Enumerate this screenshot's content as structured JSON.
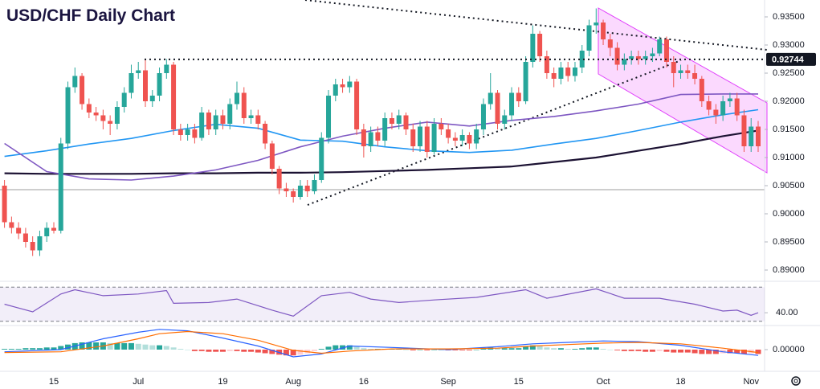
{
  "chart_data": {
    "type": "candlestick",
    "title": "USD/CHF Daily Chart",
    "categories": [
      null,
      null,
      null,
      null,
      null,
      null,
      null,
      "15",
      null,
      null,
      null,
      null,
      null,
      null,
      null,
      null,
      null,
      null,
      null,
      "Jul",
      null,
      null,
      null,
      null,
      null,
      null,
      null,
      null,
      null,
      null,
      null,
      "19",
      null,
      null,
      null,
      null,
      null,
      null,
      null,
      null,
      null,
      "Aug",
      null,
      null,
      null,
      null,
      null,
      null,
      null,
      null,
      null,
      "16",
      null,
      null,
      null,
      null,
      null,
      null,
      null,
      null,
      null,
      null,
      null,
      "Sep",
      null,
      null,
      null,
      null,
      null,
      null,
      null,
      null,
      null,
      "15",
      null,
      null,
      null,
      null,
      null,
      null,
      null,
      null,
      null,
      null,
      null,
      "Oct",
      null,
      null,
      null,
      null,
      null,
      null,
      null,
      null,
      null,
      null,
      "18",
      null,
      null,
      null,
      null,
      null,
      null,
      null,
      null,
      null,
      "Nov",
      null
    ],
    "open": [
      0.905,
      0.8985,
      0.8975,
      0.8965,
      0.895,
      0.8935,
      0.896,
      0.8975,
      0.897,
      0.9125,
      0.9225,
      0.9245,
      0.9195,
      0.918,
      0.9175,
      0.9165,
      0.916,
      0.919,
      0.9215,
      0.925,
      0.9255,
      0.92,
      0.921,
      0.925,
      0.9265,
      0.915,
      0.914,
      0.915,
      0.9135,
      0.918,
      0.915,
      0.9175,
      0.916,
      0.9195,
      0.9215,
      0.917,
      0.9175,
      0.916,
      0.9125,
      0.908,
      0.9045,
      0.904,
      0.903,
      0.905,
      0.904,
      0.906,
      0.9135,
      0.921,
      0.923,
      0.9225,
      0.9235,
      0.915,
      0.912,
      0.9145,
      0.913,
      0.917,
      0.916,
      0.9175,
      0.915,
      0.912,
      0.9155,
      0.911,
      0.916,
      0.915,
      0.9135,
      0.913,
      0.914,
      0.9125,
      0.915,
      0.9195,
      0.9215,
      0.916,
      0.9175,
      0.9215,
      0.92,
      0.927,
      0.932,
      0.928,
      0.925,
      0.924,
      0.926,
      0.9245,
      0.926,
      0.929,
      0.9335,
      0.934,
      0.931,
      0.9295,
      0.9265,
      0.9275,
      0.928,
      0.9275,
      0.928,
      0.9285,
      0.931,
      0.927,
      0.925,
      0.9255,
      0.925,
      0.924,
      0.92,
      0.9185,
      0.9175,
      0.92,
      0.9205,
      0.9175,
      0.912,
      0.9155
    ],
    "high": [
      0.906,
      0.8995,
      0.8985,
      0.8975,
      0.896,
      0.897,
      0.8985,
      0.8985,
      0.9135,
      0.9235,
      0.926,
      0.925,
      0.9205,
      0.919,
      0.9185,
      0.9175,
      0.92,
      0.9225,
      0.9265,
      0.927,
      0.9275,
      0.922,
      0.926,
      0.9275,
      0.927,
      0.916,
      0.916,
      0.916,
      0.919,
      0.9185,
      0.9185,
      0.9185,
      0.9205,
      0.9235,
      0.9225,
      0.9185,
      0.9185,
      0.9165,
      0.913,
      0.9085,
      0.9055,
      0.9045,
      0.906,
      0.906,
      0.907,
      0.9145,
      0.922,
      0.924,
      0.924,
      0.9245,
      0.924,
      0.916,
      0.9155,
      0.9155,
      0.918,
      0.918,
      0.9185,
      0.918,
      0.916,
      0.9165,
      0.9165,
      0.917,
      0.917,
      0.916,
      0.9145,
      0.915,
      0.9145,
      0.916,
      0.9205,
      0.925,
      0.922,
      0.9185,
      0.9225,
      0.9225,
      0.928,
      0.9335,
      0.9325,
      0.929,
      0.926,
      0.927,
      0.927,
      0.927,
      0.93,
      0.9345,
      0.9365,
      0.9345,
      0.932,
      0.9305,
      0.9285,
      0.929,
      0.929,
      0.929,
      0.9295,
      0.9315,
      0.9315,
      0.928,
      0.9265,
      0.9265,
      0.9265,
      0.9245,
      0.921,
      0.9195,
      0.921,
      0.9215,
      0.9215,
      0.9185,
      0.917,
      0.9165
    ],
    "low": [
      0.8975,
      0.8965,
      0.8955,
      0.894,
      0.8925,
      0.8925,
      0.895,
      0.8965,
      0.8965,
      0.9115,
      0.9215,
      0.9185,
      0.917,
      0.9165,
      0.915,
      0.914,
      0.915,
      0.918,
      0.9205,
      0.924,
      0.919,
      0.919,
      0.92,
      0.924,
      0.914,
      0.913,
      0.913,
      0.9125,
      0.913,
      0.914,
      0.914,
      0.915,
      0.915,
      0.9185,
      0.916,
      0.916,
      0.915,
      0.9115,
      0.907,
      0.9035,
      0.903,
      0.902,
      0.9025,
      0.903,
      0.9035,
      0.9055,
      0.9125,
      0.92,
      0.9215,
      0.9215,
      0.914,
      0.91,
      0.911,
      0.912,
      0.912,
      0.915,
      0.915,
      0.914,
      0.911,
      0.911,
      0.91,
      0.9105,
      0.914,
      0.9125,
      0.912,
      0.912,
      0.9115,
      0.9115,
      0.914,
      0.9185,
      0.915,
      0.915,
      0.9165,
      0.919,
      0.9195,
      0.926,
      0.927,
      0.924,
      0.9225,
      0.923,
      0.9235,
      0.9235,
      0.925,
      0.928,
      0.932,
      0.93,
      0.928,
      0.9255,
      0.9255,
      0.9265,
      0.9265,
      0.9265,
      0.927,
      0.928,
      0.926,
      0.9225,
      0.924,
      0.924,
      0.923,
      0.919,
      0.9175,
      0.916,
      0.9165,
      0.919,
      0.9165,
      0.911,
      0.911,
      0.911
    ],
    "close": [
      0.8985,
      0.8975,
      0.8965,
      0.895,
      0.8935,
      0.896,
      0.8975,
      0.897,
      0.9125,
      0.9225,
      0.9245,
      0.9195,
      0.918,
      0.9175,
      0.9165,
      0.916,
      0.919,
      0.9215,
      0.925,
      0.9255,
      0.92,
      0.921,
      0.925,
      0.9265,
      0.915,
      0.914,
      0.915,
      0.9135,
      0.918,
      0.915,
      0.9175,
      0.916,
      0.9195,
      0.9215,
      0.917,
      0.9175,
      0.916,
      0.9125,
      0.908,
      0.9045,
      0.904,
      0.903,
      0.905,
      0.904,
      0.906,
      0.9135,
      0.921,
      0.923,
      0.9225,
      0.9235,
      0.915,
      0.912,
      0.9145,
      0.913,
      0.917,
      0.916,
      0.9175,
      0.915,
      0.912,
      0.9155,
      0.911,
      0.916,
      0.915,
      0.9135,
      0.913,
      0.914,
      0.9125,
      0.915,
      0.9195,
      0.9215,
      0.916,
      0.9175,
      0.9215,
      0.92,
      0.927,
      0.932,
      0.928,
      0.925,
      0.924,
      0.926,
      0.9245,
      0.926,
      0.929,
      0.9335,
      0.934,
      0.931,
      0.9295,
      0.9265,
      0.9275,
      0.928,
      0.9275,
      0.928,
      0.9285,
      0.931,
      0.927,
      0.925,
      0.9255,
      0.925,
      0.924,
      0.92,
      0.9185,
      0.9175,
      0.92,
      0.9205,
      0.9175,
      0.912,
      0.9155,
      0.912
    ],
    "up_color": "#26a69a",
    "down_color": "#ef5350",
    "ylim": [
      0.888,
      0.938
    ],
    "yticks": [
      {
        "value": 0.89,
        "label": "0.89000"
      },
      {
        "value": 0.895,
        "label": "0.89500"
      },
      {
        "value": 0.9,
        "label": "0.90000"
      },
      {
        "value": 0.905,
        "label": "0.90500"
      },
      {
        "value": 0.91,
        "label": "0.91000"
      },
      {
        "value": 0.915,
        "label": "0.91500"
      },
      {
        "value": 0.92,
        "label": "0.92000"
      },
      {
        "value": 0.925,
        "label": "0.92500"
      },
      {
        "value": 0.93,
        "label": "0.93000"
      },
      {
        "value": 0.935,
        "label": "0.93500"
      }
    ],
    "moving_averages": [
      {
        "color": "#1c1233",
        "x": [
          0,
          6,
          12,
          18,
          24,
          30,
          36,
          42,
          48,
          54,
          60,
          66,
          72,
          78,
          84,
          90,
          96,
          102,
          107
        ],
        "values": [
          0.9072,
          0.9071,
          0.9071,
          0.9071,
          0.9072,
          0.9072,
          0.9073,
          0.9073,
          0.9074,
          0.9076,
          0.9078,
          0.9081,
          0.9084,
          0.9092,
          0.91,
          0.9112,
          0.9124,
          0.9138,
          0.9148
        ]
      },
      {
        "color": "#2196f3",
        "x": [
          0,
          6,
          12,
          18,
          24,
          30,
          36,
          42,
          48,
          54,
          60,
          66,
          72,
          78,
          84,
          90,
          96,
          102,
          107
        ],
        "values": [
          0.9102,
          0.9112,
          0.9124,
          0.9134,
          0.9148,
          0.9159,
          0.9152,
          0.9131,
          0.9129,
          0.9119,
          0.9112,
          0.9109,
          0.9113,
          0.9124,
          0.9134,
          0.9148,
          0.9163,
          0.9176,
          0.9185
        ]
      },
      {
        "color": "#7e57c2",
        "x": [
          0,
          6,
          12,
          18,
          24,
          30,
          36,
          42,
          48,
          54,
          60,
          66,
          72,
          78,
          84,
          90,
          96,
          102,
          107
        ],
        "values": [
          0.9125,
          0.9075,
          0.9062,
          0.906,
          0.9067,
          0.9078,
          0.9095,
          0.9119,
          0.9138,
          0.9152,
          0.9163,
          0.9156,
          0.9166,
          0.9173,
          0.9183,
          0.9195,
          0.9212,
          0.9213,
          0.9213
        ]
      }
    ],
    "price_line": {
      "value": 0.92744,
      "label": "0.92744",
      "color": "#131722"
    },
    "rsi": {
      "color": "#7e57c2",
      "ylim": [
        25,
        75
      ],
      "levels": [
        30,
        70
      ],
      "yticks": [
        {
          "value": 40,
          "label": "40.00"
        }
      ],
      "x": [
        0,
        4,
        8,
        10,
        14,
        19,
        23,
        24,
        29,
        33,
        38,
        41,
        45,
        49,
        52,
        56,
        61,
        67,
        74,
        77,
        84,
        88,
        93,
        98,
        102,
        104,
        106,
        107
      ],
      "values": [
        50,
        41,
        62,
        67,
        60,
        62,
        66,
        51,
        52,
        56,
        43,
        36,
        60,
        64,
        56,
        52,
        55,
        58,
        67,
        57,
        68,
        57,
        57,
        50,
        42,
        43,
        37,
        40
      ]
    },
    "macd": {
      "ylim": [
        -0.003,
        0.003
      ],
      "yticks": [
        {
          "value": 0,
          "label": "0.00000"
        }
      ],
      "histogram_colors": [
        "#26a69a",
        "#b2dfdb",
        "#ffcdd2",
        "#ef5350"
      ],
      "histogram": [
        0.0001,
        0.0001,
        0.0001,
        0.0002,
        0.0002,
        0.0002,
        0.0003,
        0.0003,
        0.0005,
        0.0007,
        0.0009,
        0.001,
        0.001,
        0.001,
        0.001,
        0.0009,
        0.0009,
        0.0009,
        0.0009,
        0.0008,
        0.0007,
        0.0006,
        0.0006,
        0.0005,
        0.0003,
        0.0001,
        0.0,
        -0.0002,
        -0.0002,
        -0.0003,
        -0.0003,
        -0.0003,
        -0.0002,
        -0.0002,
        -0.0003,
        -0.0003,
        -0.0004,
        -0.0005,
        -0.0006,
        -0.0007,
        -0.0008,
        -0.0008,
        -0.0007,
        -0.0005,
        -0.0002,
        0.0001,
        0.0004,
        0.0006,
        0.0006,
        0.0006,
        0.0004,
        0.0002,
        0.0001,
        0.0001,
        0.0001,
        0.0001,
        0.0001,
        0.0,
        -0.0001,
        0.0,
        -0.0001,
        0.0,
        0.0,
        -0.0001,
        -0.0001,
        -0.0001,
        -0.0001,
        0.0,
        0.0002,
        0.0003,
        0.0002,
        0.0002,
        0.0002,
        0.0002,
        0.0004,
        0.0006,
        0.0005,
        0.0003,
        0.0002,
        0.0002,
        0.0001,
        0.0001,
        0.0002,
        0.0003,
        0.0003,
        0.0001,
        0.0,
        -0.0001,
        -0.0002,
        -0.0002,
        -0.0002,
        -0.0003,
        -0.0003,
        -0.0002,
        -0.0003,
        -0.0004,
        -0.0004,
        -0.0004,
        -0.0005,
        -0.0006,
        -0.0006,
        -0.0006,
        -0.0005,
        -0.0005,
        -0.0005,
        -0.0006,
        -0.0005,
        -0.0006
      ],
      "macd": {
        "color": "#2962ff",
        "x": [
          0,
          8,
          14,
          19,
          22,
          26,
          31,
          36,
          41,
          45,
          49,
          55,
          63,
          70,
          75,
          80,
          85,
          90,
          96,
          102,
          107
        ],
        "values": [
          -0.0003,
          0.0,
          0.0015,
          0.0024,
          0.0028,
          0.0026,
          0.0016,
          0.0005,
          -0.001,
          -0.0006,
          0.0005,
          0.0003,
          0.0,
          0.0004,
          0.0008,
          0.001,
          0.0012,
          0.0011,
          0.0006,
          -0.0003,
          -0.0008
        ]
      },
      "signal": {
        "color": "#ff6d00",
        "x": [
          0,
          8,
          14,
          19,
          22,
          26,
          31,
          36,
          41,
          45,
          49,
          55,
          63,
          70,
          75,
          80,
          85,
          90,
          96,
          102,
          107
        ],
        "values": [
          -0.0004,
          -0.0003,
          0.0005,
          0.0015,
          0.0022,
          0.0025,
          0.0022,
          0.0013,
          -0.0001,
          -0.0005,
          -0.0002,
          0.0001,
          0.0001,
          0.0002,
          0.0005,
          0.0007,
          0.0009,
          0.001,
          0.0008,
          0.0002,
          -0.0004
        ]
      }
    }
  }
}
